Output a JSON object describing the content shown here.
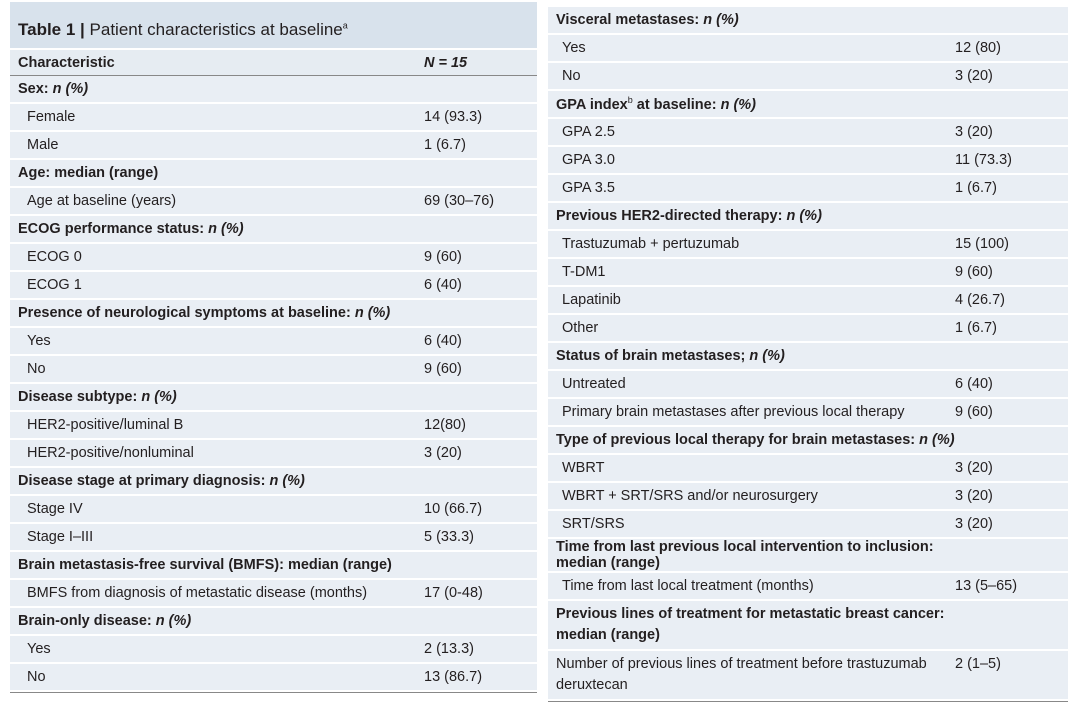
{
  "title": {
    "bold": "Table 1 |",
    "rest": " Patient characteristics at baseline",
    "sup": "a"
  },
  "header": {
    "characteristic": "Characteristic",
    "n": "N = 15"
  },
  "left": [
    {
      "type": "cat",
      "label": "Sex: ",
      "unit": "n (%)"
    },
    {
      "type": "sub",
      "label": "Female",
      "value": "14 (93.3)"
    },
    {
      "type": "sub",
      "label": "Male",
      "value": "1 (6.7)"
    },
    {
      "type": "cat",
      "label": "Age: median (range)",
      "unit": ""
    },
    {
      "type": "sub",
      "label": "Age at baseline (years)",
      "value": "69 (30–76)"
    },
    {
      "type": "cat",
      "label": "ECOG performance status: ",
      "unit": "n (%)"
    },
    {
      "type": "sub",
      "label": "ECOG 0",
      "value": "9 (60)"
    },
    {
      "type": "sub",
      "label": "ECOG 1",
      "value": "6 (40)"
    },
    {
      "type": "cat",
      "label": "Presence of neurological symptoms at baseline: ",
      "unit": "n (%)"
    },
    {
      "type": "sub",
      "label": "Yes",
      "value": "6 (40)"
    },
    {
      "type": "sub",
      "label": "No",
      "value": "9 (60)"
    },
    {
      "type": "cat",
      "label": "Disease subtype: ",
      "unit": "n (%)"
    },
    {
      "type": "sub",
      "label": "HER2-positive/luminal B",
      "value": "12(80)"
    },
    {
      "type": "sub",
      "label": "HER2-positive/nonluminal",
      "value": "3 (20)"
    },
    {
      "type": "cat",
      "label": "Disease stage at primary diagnosis: ",
      "unit": "n (%)"
    },
    {
      "type": "sub",
      "label": "Stage IV",
      "value": "10 (66.7)"
    },
    {
      "type": "sub",
      "label": "Stage I–III",
      "value": "5 (33.3)"
    },
    {
      "type": "cat",
      "label": "Brain metastasis-free survival (BMFS): median (range)",
      "unit": ""
    },
    {
      "type": "sub",
      "label": "BMFS from diagnosis of metastatic disease (months)",
      "value": "17 (0-48)"
    },
    {
      "type": "cat",
      "label": "Brain-only disease: ",
      "unit": "n (%)"
    },
    {
      "type": "sub",
      "label": "Yes",
      "value": "2 (13.3)"
    },
    {
      "type": "sub",
      "label": "No",
      "value": "13 (86.7)"
    }
  ],
  "right": [
    {
      "type": "cat",
      "label": "Visceral metastases: ",
      "unit": "n (%)"
    },
    {
      "type": "sub",
      "label": "Yes",
      "value": "12 (80)"
    },
    {
      "type": "sub",
      "label": "No",
      "value": "3 (20)"
    },
    {
      "type": "cat",
      "label": "GPA index",
      "sup": "b",
      "label2": " at baseline: ",
      "unit": "n (%)"
    },
    {
      "type": "sub",
      "label": "GPA 2.5",
      "value": "3 (20)"
    },
    {
      "type": "sub",
      "label": "GPA 3.0",
      "value": "11 (73.3)"
    },
    {
      "type": "sub",
      "label": "GPA 3.5",
      "value": "1 (6.7)"
    },
    {
      "type": "cat",
      "label": "Previous HER2-directed therapy: ",
      "unit": "n (%)"
    },
    {
      "type": "sub",
      "label": "Trastuzumab + pertuzumab",
      "value": "15 (100)"
    },
    {
      "type": "sub",
      "label": "T-DM1",
      "value": "9 (60)"
    },
    {
      "type": "sub",
      "label": "Lapatinib",
      "value": "4 (26.7)"
    },
    {
      "type": "sub",
      "label": "Other",
      "value": "1 (6.7)"
    },
    {
      "type": "cat",
      "label": "Status of brain metastases; ",
      "unit": "n (%)"
    },
    {
      "type": "sub",
      "label": "Untreated",
      "value": "6 (40)"
    },
    {
      "type": "sub",
      "label": "Primary brain metastases after previous local therapy",
      "value": "9 (60)"
    },
    {
      "type": "cat",
      "label": "Type of previous local therapy for brain metastases: ",
      "unit": "n (%)"
    },
    {
      "type": "sub",
      "label": "WBRT",
      "value": "3 (20)"
    },
    {
      "type": "sub",
      "label": "WBRT + SRT/SRS and/or neurosurgery",
      "value": "3 (20)"
    },
    {
      "type": "sub",
      "label": "SRT/SRS",
      "value": "3 (20)"
    },
    {
      "type": "cat",
      "label": "Time from last previous local intervention to inclusion: median (range)",
      "unit": ""
    },
    {
      "type": "sub",
      "label": "Time from last local treatment (months)",
      "value": "13 (5–65)"
    },
    {
      "type": "cat tall",
      "label": "Previous lines of treatment for metastatic breast cancer: median (range)",
      "unit": ""
    },
    {
      "type": "plain tall",
      "label": "Number of previous lines of treatment before trastuzumab deruxtecan",
      "value": "2 (1–5)"
    }
  ]
}
